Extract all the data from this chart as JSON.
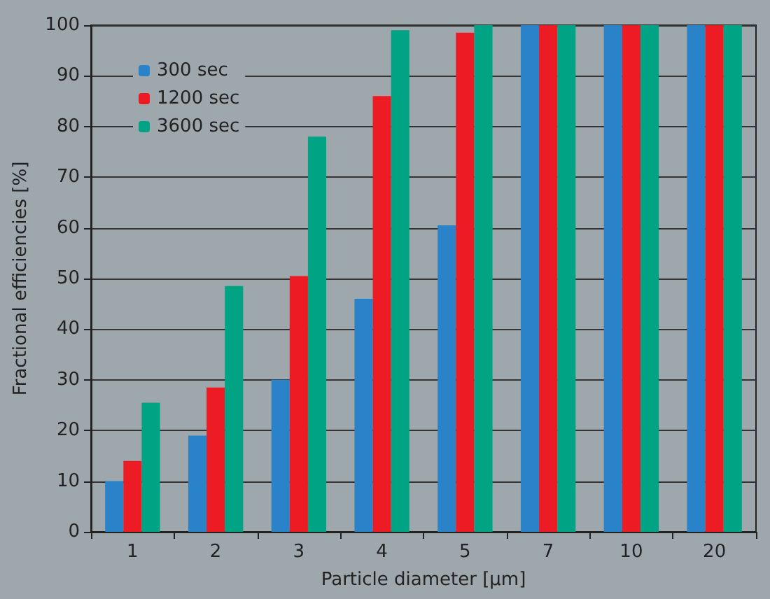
{
  "chart_data": {
    "type": "bar",
    "xlabel": "Particle diameter [µm]",
    "ylabel": "Fractional efficiencies [%]",
    "categories": [
      "1",
      "2",
      "3",
      "4",
      "5",
      "7",
      "10",
      "20"
    ],
    "series": [
      {
        "name": "300 sec",
        "color": "#2a82c9",
        "values": [
          10,
          19,
          30,
          46,
          60.5,
          100,
          100,
          100
        ]
      },
      {
        "name": "1200 sec",
        "color": "#ed1c24",
        "values": [
          14,
          28.5,
          50.5,
          86,
          98.5,
          100,
          100,
          100
        ]
      },
      {
        "name": "3600 sec",
        "color": "#00a384",
        "values": [
          25.5,
          48.5,
          78,
          99,
          100,
          100,
          100,
          100
        ]
      }
    ],
    "ylim": [
      0,
      100
    ],
    "yticks": [
      0,
      10,
      20,
      30,
      40,
      50,
      60,
      70,
      80,
      90,
      100
    ],
    "grid": "y",
    "legend": "top left"
  }
}
